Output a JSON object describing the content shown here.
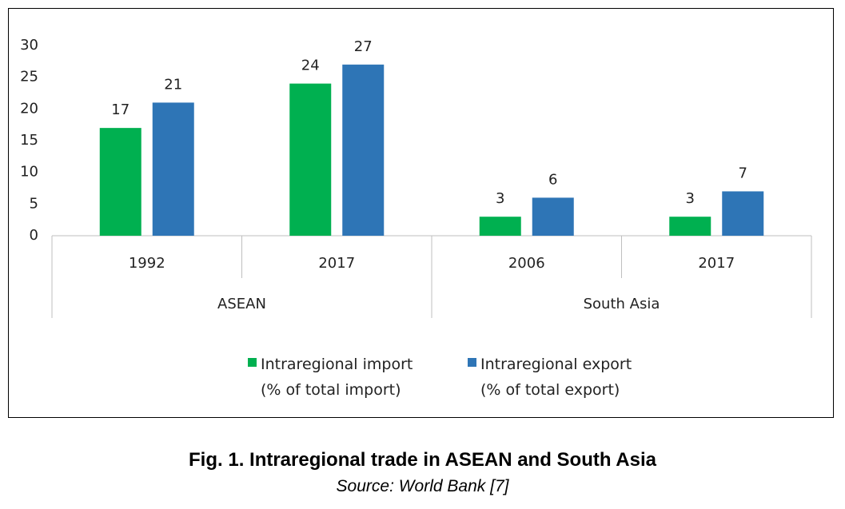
{
  "chart_data": {
    "type": "bar",
    "caption": "Fig. 1. Intraregional trade in ASEAN and South Asia",
    "source": "Source: World Bank [7]",
    "groups": [
      {
        "name": "ASEAN",
        "categories": [
          "1992",
          "2017"
        ]
      },
      {
        "name": "South Asia",
        "categories": [
          "2006",
          "2017"
        ]
      }
    ],
    "series": [
      {
        "name": "Intraregional import\n(% of total import)",
        "color": "#00b050",
        "values": [
          17,
          24,
          3,
          3
        ]
      },
      {
        "name": "Intraregional export\n(% of total export)",
        "color": "#2e75b6",
        "values": [
          21,
          27,
          6,
          7
        ]
      }
    ],
    "ylim": [
      0,
      30
    ],
    "yticks": [
      0,
      5,
      10,
      15,
      20,
      25,
      30
    ],
    "grid": false
  }
}
